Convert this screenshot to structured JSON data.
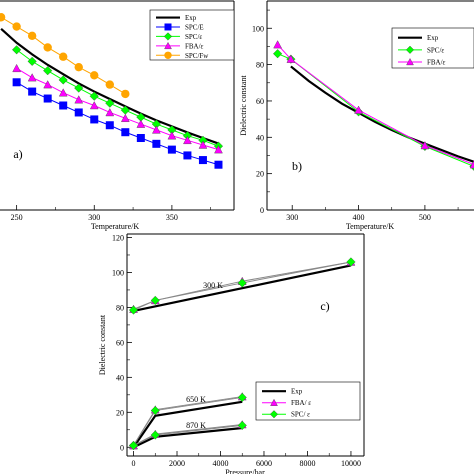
{
  "chart_data": [
    {
      "id": "a",
      "type": "line",
      "panel_label": "a)",
      "xlabel": "Temperature/K",
      "ylabel": "",
      "xlim": [
        238,
        390
      ],
      "ylim": [
        10,
        100
      ],
      "xticks": [
        250,
        300,
        350
      ],
      "legend_position": "top-right",
      "series": [
        {
          "name": "Exp",
          "color": "#000000",
          "marker": "none",
          "x": [
            240,
            250,
            260,
            270,
            280,
            290,
            300,
            310,
            320,
            330,
            340,
            350,
            360,
            370,
            380
          ],
          "y": [
            88,
            82,
            77,
            72.5,
            68.5,
            64.5,
            61,
            57.8,
            54.6,
            51.5,
            48.6,
            46,
            43.4,
            41,
            38.6
          ]
        },
        {
          "name": "SPC/E",
          "color": "#0000ff",
          "marker": "square",
          "x": [
            250,
            260,
            270,
            280,
            290,
            300,
            310,
            320,
            330,
            340,
            350,
            360,
            370,
            380
          ],
          "y": [
            65,
            61,
            58,
            55,
            52,
            49,
            46.5,
            43.5,
            41,
            38.5,
            36,
            33.5,
            31.5,
            29.5
          ]
        },
        {
          "name": "SPC/ε",
          "color": "#00ff00",
          "marker": "diamond",
          "x": [
            250,
            260,
            270,
            280,
            290,
            300,
            310,
            320,
            330,
            340,
            350,
            360,
            370,
            380
          ],
          "y": [
            79,
            74,
            70,
            66,
            62.5,
            59,
            56,
            53,
            50,
            47,
            44.5,
            42,
            40,
            37.5
          ]
        },
        {
          "name": "FBA/ε",
          "color": "#ff00ff",
          "marker": "triangle",
          "x": [
            250,
            260,
            270,
            280,
            290,
            300,
            310,
            320,
            330,
            340,
            350,
            360,
            370,
            380
          ],
          "y": [
            71,
            67,
            64,
            60.5,
            57.5,
            55,
            52,
            49.5,
            47,
            44.5,
            42,
            40,
            38,
            36
          ]
        },
        {
          "name": "SPC/Fw",
          "color": "#ffa500",
          "marker": "circle",
          "x": [
            240,
            250,
            260,
            270,
            280,
            290,
            300,
            310,
            320
          ],
          "y": [
            93,
            89,
            85,
            80,
            76,
            71.5,
            68,
            64,
            60
          ]
        }
      ]
    },
    {
      "id": "b",
      "type": "line",
      "panel_label": "b)",
      "xlabel": "Temperature/K",
      "ylabel": "Dielectric constant",
      "xlim": [
        262,
        574
      ],
      "ylim": [
        0,
        115
      ],
      "xticks": [
        300,
        400,
        500
      ],
      "yticks": [
        0,
        20,
        40,
        60,
        80,
        100
      ],
      "legend_position": "top-right",
      "series": [
        {
          "name": "Exp",
          "color": "#000000",
          "marker": "none",
          "x": [
            298,
            325,
            350,
            375,
            400,
            425,
            450,
            475,
            500,
            525,
            550,
            574
          ],
          "y": [
            79,
            71,
            64.5,
            58.5,
            53.5,
            48.5,
            44,
            40,
            36.5,
            33,
            29.5,
            26.5
          ]
        },
        {
          "name": "SPC/ε",
          "color": "#00ff00",
          "marker": "diamond",
          "x": [
            278,
            298,
            400,
            500,
            574
          ],
          "y": [
            86,
            83,
            54,
            35,
            24
          ]
        },
        {
          "name": "FBA/ε",
          "color": "#ff00ff",
          "marker": "triangle",
          "x": [
            278,
            298,
            400,
            500,
            574
          ],
          "y": [
            91,
            83,
            55,
            35.5,
            25
          ]
        }
      ]
    },
    {
      "id": "c",
      "type": "line",
      "panel_label": "c)",
      "xlabel": "Pressure/bar",
      "ylabel": "Dielectric constant",
      "xlim": [
        -300,
        10600
      ],
      "ylim": [
        -5,
        122
      ],
      "xticks": [
        0,
        2000,
        4000,
        6000,
        8000,
        10000
      ],
      "yticks": [
        0,
        20,
        40,
        60,
        80,
        100,
        120
      ],
      "legend_position": "lower-right",
      "annotations": [
        "300 K",
        "650 K",
        "870 K"
      ],
      "series": [
        {
          "name": "Exp",
          "color": "#000000",
          "marker": "none",
          "groups": [
            {
              "x": [
                0,
                10000
              ],
              "y": [
                78,
                104
              ]
            },
            {
              "x": [
                0,
                1000,
                5000
              ],
              "y": [
                0,
                18,
                26
              ]
            },
            {
              "x": [
                0,
                1000,
                5000
              ],
              "y": [
                0,
                6,
                11
              ]
            }
          ]
        },
        {
          "name": "FBA/ ε",
          "color": "#ff00ff",
          "marker": "triangle",
          "groups": [
            {
              "x": [
                0,
                1000,
                5000,
                10000
              ],
              "y": [
                79,
                84,
                95,
                106
              ]
            },
            {
              "x": [
                0,
                1000,
                5000
              ],
              "y": [
                1,
                21.5,
                29
              ]
            },
            {
              "x": [
                0,
                1000,
                5000
              ],
              "y": [
                1,
                7.5,
                13
              ]
            }
          ]
        },
        {
          "name": "SPC/ ε",
          "color": "#00ff00",
          "marker": "diamond",
          "groups": [
            {
              "x": [
                0,
                1000,
                5000,
                10000
              ],
              "y": [
                78.5,
                84,
                94,
                106
              ]
            },
            {
              "x": [
                0,
                1000,
                5000
              ],
              "y": [
                1,
                21,
                28.5
              ]
            },
            {
              "x": [
                0,
                1000,
                5000
              ],
              "y": [
                1,
                7,
                12.5
              ]
            }
          ]
        }
      ]
    }
  ]
}
